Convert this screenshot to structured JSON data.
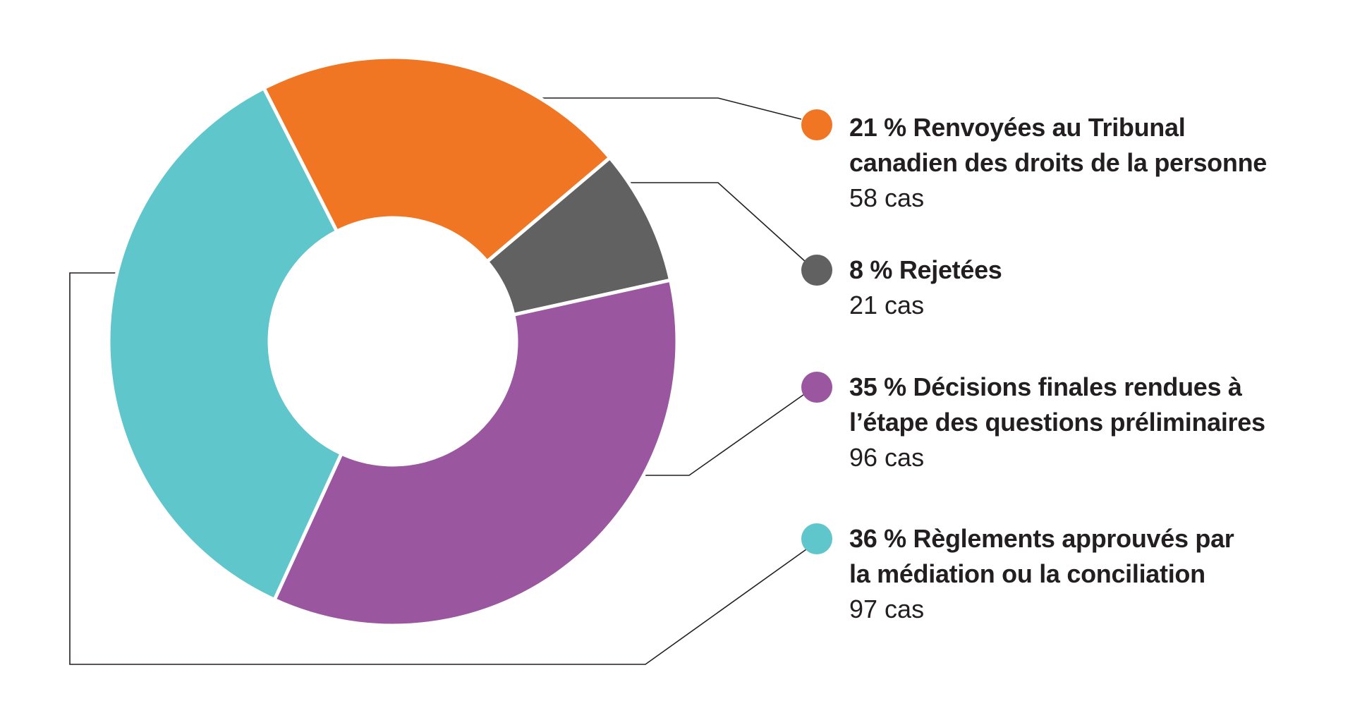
{
  "chart_data": {
    "type": "pie",
    "donut": true,
    "title": "",
    "slices": [
      {
        "percent": 21,
        "label_line1": "21 % Renvoyées au Tribunal",
        "label_line2": "canadien des droits de la personne",
        "count": "58 cas",
        "value": 58,
        "color": "#F07623"
      },
      {
        "percent": 8,
        "label_line1": "8 % Rejetées",
        "label_line2": "",
        "count": "21 cas",
        "value": 21,
        "color": "#616161"
      },
      {
        "percent": 35,
        "label_line1": "35 % Décisions finales rendues à",
        "label_line2": "l’étape des questions préliminaires",
        "count": "96 cas",
        "value": 96,
        "color": "#9B56A0"
      },
      {
        "percent": 36,
        "label_line1": "36 % Règlements approuvés par",
        "label_line2": "la médiation ou la conciliation",
        "count": "97 cas",
        "value": 97,
        "color": "#5FC6CC"
      }
    ],
    "legend_placement": "right"
  }
}
